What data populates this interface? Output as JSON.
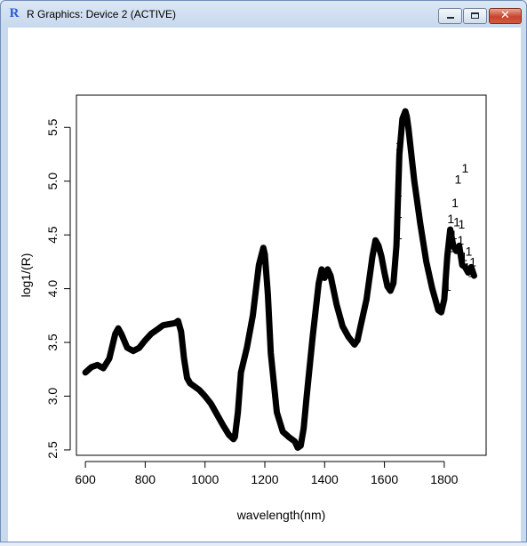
{
  "window": {
    "title": "R Graphics: Device 2 (ACTIVE)",
    "icons": {
      "app": "r-logo-icon",
      "minimize": "minimize-icon",
      "maximize": "maximize-icon",
      "close": "close-icon"
    },
    "app_icon_glyph": "R",
    "close_glyph": "✕",
    "colors": {
      "close_button": "#c8442c",
      "title_bar": "#c9d9ee",
      "plot_background": "#ffffff"
    }
  },
  "chart_data": {
    "type": "line",
    "title": "",
    "xlabel": "wavelength(nm)",
    "ylabel": "log1/(R)",
    "xlim": [
      570,
      1940
    ],
    "ylim": [
      2.45,
      5.8
    ],
    "xticks": [
      600,
      800,
      1000,
      1200,
      1400,
      1600,
      1800
    ],
    "yticks": [
      2.5,
      3.0,
      3.5,
      4.0,
      4.5,
      5.0,
      5.5
    ],
    "point_symbol": "1",
    "grid": false,
    "legend": "none",
    "line_color": "#000000",
    "x": [
      600,
      620,
      640,
      660,
      680,
      700,
      710,
      720,
      740,
      760,
      780,
      800,
      820,
      840,
      860,
      880,
      900,
      910,
      920,
      930,
      940,
      950,
      960,
      980,
      1000,
      1020,
      1040,
      1060,
      1080,
      1095,
      1100,
      1110,
      1120,
      1140,
      1160,
      1180,
      1195,
      1200,
      1210,
      1220,
      1240,
      1260,
      1280,
      1300,
      1310,
      1320,
      1330,
      1340,
      1360,
      1380,
      1390,
      1400,
      1410,
      1420,
      1440,
      1460,
      1480,
      1500,
      1510,
      1520,
      1540,
      1560,
      1570,
      1580,
      1590,
      1600,
      1610,
      1620,
      1630,
      1640,
      1650,
      1660,
      1670,
      1675,
      1680,
      1700,
      1720,
      1740,
      1760,
      1780,
      1790,
      1800,
      1810,
      1820,
      1830,
      1840,
      1850,
      1860,
      1870,
      1880,
      1890,
      1900
    ],
    "y": [
      3.22,
      3.27,
      3.29,
      3.26,
      3.35,
      3.58,
      3.63,
      3.58,
      3.45,
      3.42,
      3.45,
      3.52,
      3.58,
      3.62,
      3.66,
      3.67,
      3.68,
      3.7,
      3.6,
      3.35,
      3.17,
      3.12,
      3.1,
      3.06,
      3.0,
      2.93,
      2.83,
      2.73,
      2.64,
      2.6,
      2.62,
      2.85,
      3.22,
      3.45,
      3.75,
      4.22,
      4.38,
      4.32,
      3.95,
      3.4,
      2.85,
      2.67,
      2.62,
      2.58,
      2.52,
      2.54,
      2.7,
      3.0,
      3.55,
      4.05,
      4.18,
      4.1,
      4.18,
      4.12,
      3.85,
      3.65,
      3.55,
      3.48,
      3.52,
      3.65,
      3.9,
      4.3,
      4.45,
      4.4,
      4.3,
      4.15,
      4.02,
      3.98,
      4.05,
      4.4,
      5.25,
      5.58,
      5.65,
      5.6,
      5.5,
      5.0,
      4.6,
      4.25,
      4.0,
      3.8,
      3.78,
      3.9,
      4.3,
      4.55,
      4.4,
      4.35,
      4.4,
      4.22,
      4.2,
      4.15,
      4.2,
      4.12
    ],
    "scatter_overlay": [
      {
        "x": 1648,
        "y": 4.5
      },
      {
        "x": 1648,
        "y": 4.7
      },
      {
        "x": 1648,
        "y": 4.9
      },
      {
        "x": 1648,
        "y": 5.1
      },
      {
        "x": 1648,
        "y": 5.33
      },
      {
        "x": 1812,
        "y": 4.02
      },
      {
        "x": 1820,
        "y": 4.38
      },
      {
        "x": 1822,
        "y": 4.65
      },
      {
        "x": 1832,
        "y": 4.5
      },
      {
        "x": 1836,
        "y": 4.8
      },
      {
        "x": 1842,
        "y": 4.62
      },
      {
        "x": 1846,
        "y": 5.02
      },
      {
        "x": 1855,
        "y": 4.45
      },
      {
        "x": 1858,
        "y": 4.6
      },
      {
        "x": 1866,
        "y": 4.3
      },
      {
        "x": 1870,
        "y": 5.12
      },
      {
        "x": 1876,
        "y": 4.2
      },
      {
        "x": 1882,
        "y": 4.35
      },
      {
        "x": 1890,
        "y": 4.15
      },
      {
        "x": 1896,
        "y": 4.25
      }
    ]
  }
}
